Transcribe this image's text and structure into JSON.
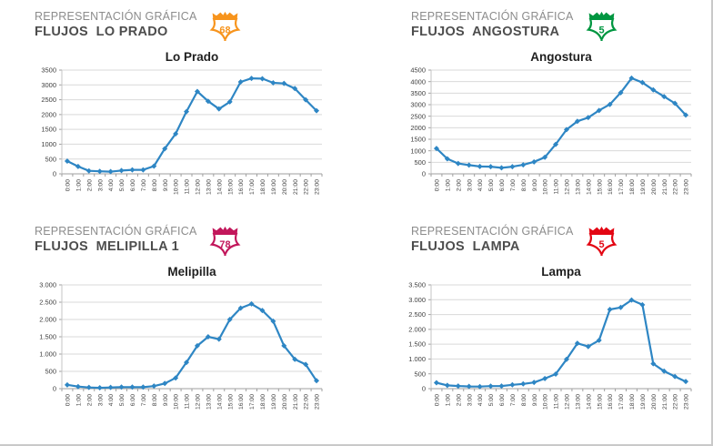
{
  "colors": {
    "line": "#2E86C4",
    "grid": "#D9D9D9",
    "axis": "#9F9F9F",
    "axis_side": "#C6C6C6",
    "tick_label": "#3F3F3F",
    "chart_title": "#1F1F1F"
  },
  "panels": [
    {
      "line1": "REPRESENTACIÓN GRÁFICA",
      "line2": "FLUJOS  LO PRADO",
      "shield": {
        "number": "68",
        "color": "#F7941D"
      }
    },
    {
      "line1": "REPRESENTACIÓN GRÁFICA",
      "line2": "FLUJOS  ANGOSTURA",
      "shield": {
        "number": "5",
        "color": "#009640"
      }
    },
    {
      "line1": "REPRESENTACIÓN GRÁFICA",
      "line2": "FLUJOS  MELIPILLA 1",
      "shield": {
        "number": "78",
        "color": "#C2175B"
      }
    },
    {
      "line1": "REPRESENTACIÓN GRÁFICA",
      "line2": "FLUJOS  LAMPA",
      "shield": {
        "number": "5",
        "color": "#E30613"
      }
    }
  ],
  "chart_data": [
    {
      "type": "line",
      "title": "Lo Prado",
      "x": [
        "0:00",
        "1:00",
        "2:00",
        "3:00",
        "4:00",
        "5:00",
        "6:00",
        "7:00",
        "8:00",
        "9:00",
        "10:00",
        "11:00",
        "12:00",
        "13:00",
        "14:00",
        "15:00",
        "16:00",
        "17:00",
        "18:00",
        "19:00",
        "20:00",
        "21:00",
        "22:00",
        "23:00"
      ],
      "values": [
        430,
        250,
        100,
        85,
        75,
        110,
        135,
        135,
        260,
        850,
        1350,
        2100,
        2780,
        2450,
        2190,
        2430,
        3100,
        3220,
        3210,
        3070,
        3050,
        2880,
        2500,
        2130
      ],
      "ylim": [
        0,
        3500
      ],
      "ystep": 500,
      "y_ticks": [
        "0",
        "500",
        "1000",
        "1500",
        "2000",
        "2500",
        "3000",
        "3500"
      ],
      "grid": true,
      "legend": "none"
    },
    {
      "type": "line",
      "title": "Angostura",
      "x": [
        "0:00",
        "1:00",
        "2:00",
        "3:00",
        "4:00",
        "5:00",
        "6:00",
        "7:00",
        "8:00",
        "9:00",
        "10:00",
        "11:00",
        "12:00",
        "13:00",
        "14:00",
        "15:00",
        "16:00",
        "17:00",
        "18:00",
        "19:00",
        "20:00",
        "21:00",
        "22:00",
        "23:00"
      ],
      "values": [
        1100,
        650,
        450,
        380,
        320,
        310,
        260,
        310,
        390,
        520,
        720,
        1280,
        1920,
        2280,
        2440,
        2750,
        3010,
        3520,
        4150,
        3960,
        3640,
        3350,
        3060,
        2550
      ],
      "ylim": [
        0,
        4500
      ],
      "ystep": 500,
      "y_ticks": [
        "0",
        "500",
        "1000",
        "1500",
        "2000",
        "2500",
        "3000",
        "3500",
        "4000",
        "4500"
      ],
      "grid": true,
      "legend": "none"
    },
    {
      "type": "line",
      "title": "Melipilla",
      "x": [
        "0:00",
        "1:00",
        "2:00",
        "3:00",
        "4:00",
        "5:00",
        "6:00",
        "7:00",
        "8:00",
        "9:00",
        "10:00",
        "11:00",
        "12:00",
        "13:00",
        "14:00",
        "15:00",
        "16:00",
        "17:00",
        "18:00",
        "19:00",
        "20:00",
        "21:00",
        "22:00",
        "23:00"
      ],
      "values": [
        110,
        60,
        35,
        25,
        35,
        45,
        45,
        45,
        75,
        150,
        310,
        760,
        1240,
        1500,
        1430,
        2000,
        2330,
        2450,
        2260,
        1950,
        1240,
        850,
        700,
        230
      ],
      "ylim": [
        0,
        3000
      ],
      "ystep": 500,
      "y_ticks": [
        "0",
        "500",
        "1.000",
        "1.500",
        "2.000",
        "2.500",
        "3.000"
      ],
      "grid": true,
      "legend": "none"
    },
    {
      "type": "line",
      "title": "Lampa",
      "x": [
        "0:00",
        "1:00",
        "2:00",
        "3:00",
        "4:00",
        "5:00",
        "6:00",
        "7:00",
        "8:00",
        "9:00",
        "10:00",
        "11:00",
        "12:00",
        "13:00",
        "14:00",
        "15:00",
        "16:00",
        "17:00",
        "18:00",
        "19:00",
        "20:00",
        "21:00",
        "22:00",
        "23:00"
      ],
      "values": [
        200,
        110,
        90,
        75,
        70,
        85,
        90,
        130,
        160,
        210,
        340,
        490,
        990,
        1530,
        1420,
        1630,
        2670,
        2740,
        2990,
        2830,
        840,
        590,
        410,
        240
      ],
      "ylim": [
        0,
        3500
      ],
      "ystep": 500,
      "y_ticks": [
        "0",
        "500",
        "1.000",
        "1.500",
        "2.000",
        "2.500",
        "3.000",
        "3.500"
      ],
      "grid": true,
      "legend": "none"
    }
  ]
}
